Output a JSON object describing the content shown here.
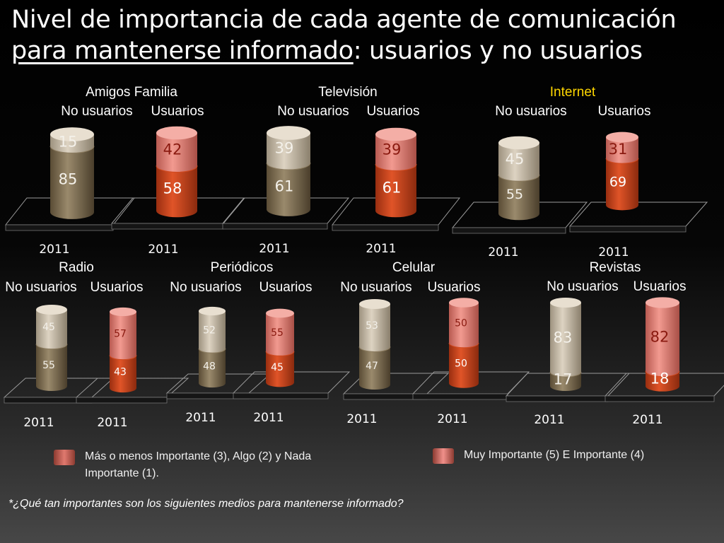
{
  "title": {
    "line1": "Nivel de importancia de cada agente de comunicación",
    "line2_underlined": "para mantenerse informado",
    "line2_rest": ":  usuarios y no usuarios"
  },
  "colors": {
    "no_usuarios_dark": "#7a6a4e",
    "no_usuarios_light": "#c8bda9",
    "usuarios_dark": "#c9401a",
    "usuarios_light": "#e57a6f",
    "internet_title": "#ffd700"
  },
  "chart_data": {
    "type": "stacked-cylinder-bar",
    "year_label": "2011",
    "stack_labels": {
      "bottom": "Más o menos Importante (3), Algo (2) y Nada Importante (1).",
      "top": "Muy Importante (5) E Importante (4)"
    },
    "charts": [
      {
        "name": "Amigos Familia",
        "title_color": "#ffffff",
        "categories": [
          "No usuarios",
          "Usuarios"
        ],
        "bottom": [
          85,
          58
        ],
        "top": [
          15,
          42
        ],
        "year_labels": [
          "2011",
          "2011"
        ]
      },
      {
        "name": "Televisión",
        "title_color": "#ffffff",
        "categories": [
          "No usuarios",
          "Usuarios"
        ],
        "bottom": [
          61,
          61
        ],
        "top": [
          39,
          39
        ],
        "year_labels": [
          "2011",
          "2011"
        ]
      },
      {
        "name": "Internet",
        "title_color": "#ffd700",
        "categories": [
          "No usuarios",
          "Usuarios"
        ],
        "bottom": [
          55,
          69
        ],
        "top": [
          45,
          31
        ],
        "year_labels": [
          "2011",
          "2011"
        ]
      },
      {
        "name": "Radio",
        "title_color": "#ffffff",
        "categories": [
          "No usuarios",
          "Usuarios"
        ],
        "bottom": [
          55,
          43
        ],
        "top": [
          45,
          57
        ],
        "year_labels": [
          "2011",
          "2011"
        ]
      },
      {
        "name": "Periódicos",
        "title_color": "#ffffff",
        "categories": [
          "No usuarios",
          "Usuarios"
        ],
        "bottom": [
          48,
          45
        ],
        "top": [
          52,
          55
        ],
        "year_labels": [
          "2011",
          "2011"
        ]
      },
      {
        "name": "Celular",
        "title_color": "#ffffff",
        "categories": [
          "No usuarios",
          "Usuarios"
        ],
        "bottom": [
          47,
          50
        ],
        "top": [
          53,
          50
        ],
        "year_labels": [
          "2011",
          "2011"
        ]
      },
      {
        "name": "Revistas",
        "title_color": "#ffffff",
        "categories": [
          "No usuarios",
          "Usuarios"
        ],
        "bottom": [
          17,
          18
        ],
        "top": [
          83,
          82
        ],
        "year_labels": [
          "2011",
          "2011"
        ]
      }
    ]
  },
  "legend": {
    "item1": "Más o menos Importante (3), Algo (2) y Nada Importante (1).",
    "item2": "Muy Importante (5) E Importante (4)"
  },
  "footnote": "*¿Qué tan importantes son los siguientes medios para mantenerse informado?"
}
